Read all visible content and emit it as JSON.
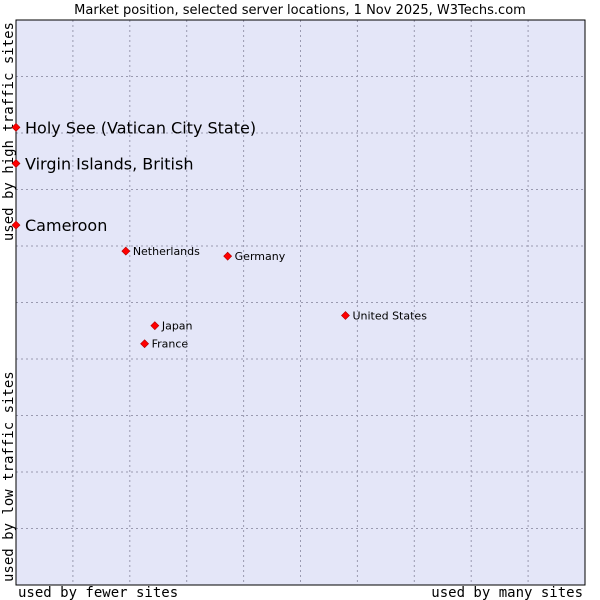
{
  "chart_data": {
    "type": "scatter",
    "title": "Market position, selected server locations, 1 Nov 2025, W3Techs.com",
    "xlabel_left": "used by fewer sites",
    "xlabel_right": "used by many sites",
    "ylabel_top": "used by high traffic sites",
    "ylabel_bottom": "used by low traffic sites",
    "xlim": [
      0,
      100
    ],
    "ylim": [
      0,
      100
    ],
    "grid": true,
    "marker_color": "#ff0000",
    "plot_background": "#e4e6f8",
    "points": [
      {
        "name": "Holy See (Vatican City State)",
        "x": 0.0,
        "y": 81.0,
        "emphasis": true
      },
      {
        "name": "Virgin Islands, British",
        "x": 0.0,
        "y": 74.6,
        "emphasis": true
      },
      {
        "name": "Cameroon",
        "x": 0.0,
        "y": 63.7,
        "emphasis": true
      },
      {
        "name": "Netherlands",
        "x": 19.3,
        "y": 59.1,
        "emphasis": false
      },
      {
        "name": "Germany",
        "x": 37.2,
        "y": 58.2,
        "emphasis": false
      },
      {
        "name": "United States",
        "x": 57.9,
        "y": 47.7,
        "emphasis": false
      },
      {
        "name": "Japan",
        "x": 24.4,
        "y": 45.9,
        "emphasis": false
      },
      {
        "name": "France",
        "x": 22.6,
        "y": 42.7,
        "emphasis": false
      }
    ]
  }
}
